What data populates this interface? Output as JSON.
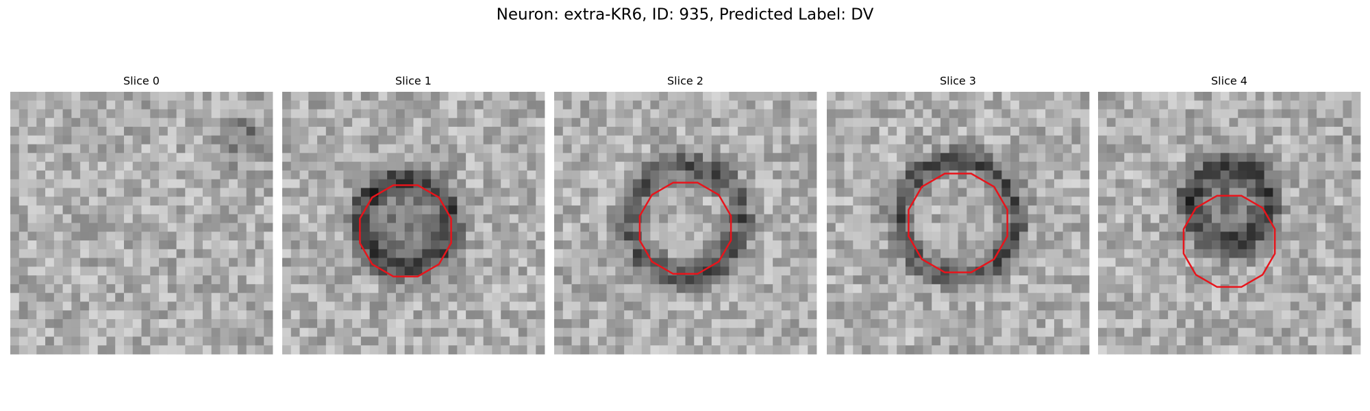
{
  "title": "Neuron: extra-KR6, ID: 935, Predicted Label: DV",
  "panels": [
    {
      "title": "Slice 0"
    },
    {
      "title": "Slice 1"
    },
    {
      "title": "Slice 2"
    },
    {
      "title": "Slice 3"
    },
    {
      "title": "Slice 4"
    }
  ]
}
